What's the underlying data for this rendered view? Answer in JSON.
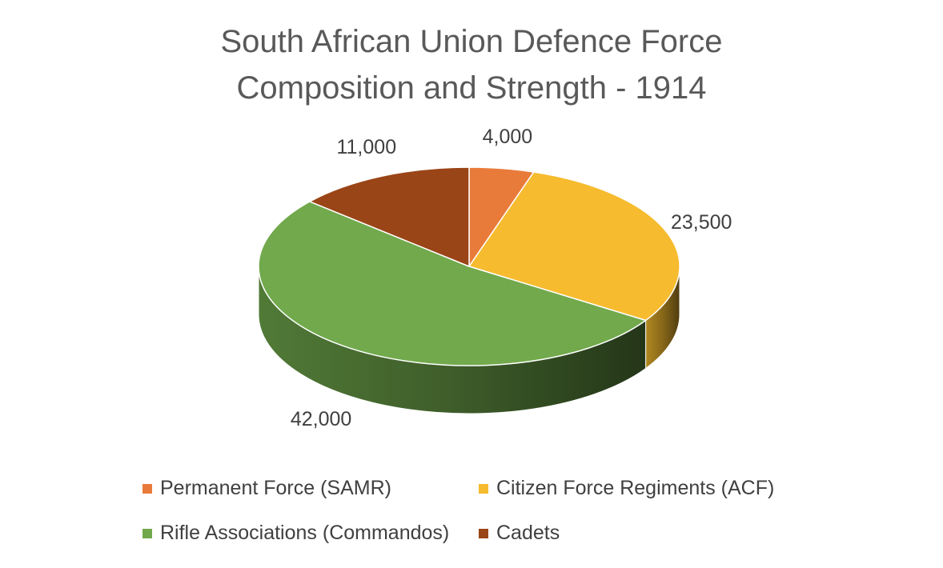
{
  "chart_data": {
    "type": "pie",
    "title": "South African Union Defence Force Composition and Strength - 1914",
    "title_lines": [
      "South African Union Defence Force",
      "Composition and Strength - 1914"
    ],
    "categories": [
      "Permanent Force (SAMR)",
      "Citizen Force Regiments (ACF)",
      "Rifle Associations (Commandos)",
      "Cadets"
    ],
    "values": [
      4000,
      23500,
      42000,
      11000
    ],
    "data_labels": [
      "4,000",
      "23,500",
      "42,000",
      "11,000"
    ],
    "colors": [
      "#E97B3A",
      "#F6BB2E",
      "#71A94C",
      "#9A4517"
    ],
    "legend_position": "bottom",
    "style": "3d-pie"
  }
}
